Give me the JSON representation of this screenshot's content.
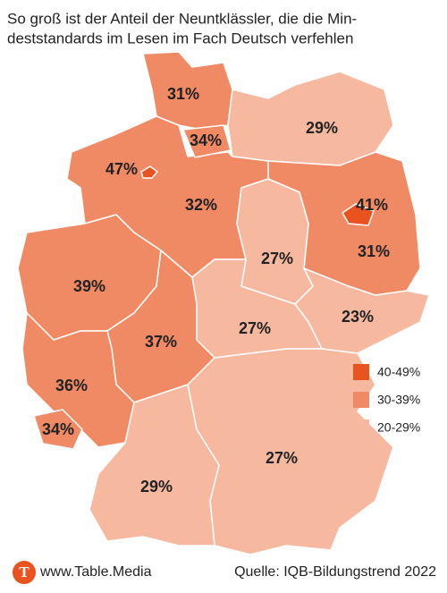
{
  "title": {
    "lines": [
      "So groß ist der Anteil der Neuntklässler, die die Min-",
      "deststandards im Lesen im Fach Deutsch verfehlen"
    ]
  },
  "regions": [
    {
      "label": "31%",
      "color": "#f08a64"
    },
    {
      "label": "34%",
      "color": "#f08a64"
    },
    {
      "label": "29%",
      "color": "#f6b9a0"
    },
    {
      "label": "47%",
      "color": "#e8531f"
    },
    {
      "label": "32%",
      "color": "#f08a64"
    },
    {
      "label": "41%",
      "color": "#e8531f"
    },
    {
      "label": "31%",
      "color": "#f08a64"
    },
    {
      "label": "27%",
      "color": "#f6b9a0"
    },
    {
      "label": "39%",
      "color": "#f08a64"
    },
    {
      "label": "23%",
      "color": "#f6b9a0"
    },
    {
      "label": "27%",
      "color": "#f6b9a0"
    },
    {
      "label": "37%",
      "color": "#f08a64"
    },
    {
      "label": "36%",
      "color": "#f08a64"
    },
    {
      "label": "34%",
      "color": "#f08a64"
    },
    {
      "label": "27%",
      "color": "#f6b9a0"
    },
    {
      "label": "29%",
      "color": "#f6b9a0"
    }
  ],
  "legend": [
    {
      "label": "40-49%",
      "color": "#e8531f"
    },
    {
      "label": "30-39%",
      "color": "#f08a64"
    },
    {
      "label": "20-29%",
      "color": "#f6b9a0"
    }
  ],
  "footer": {
    "logo": "T",
    "site": "www.Table.Media",
    "source": "Quelle:  IQB-Bildungstrend 2022"
  }
}
